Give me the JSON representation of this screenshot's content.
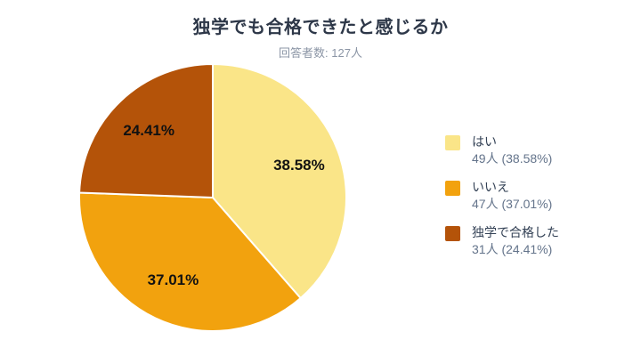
{
  "chart_data": {
    "type": "pie",
    "title": "独学でも合格できたと感じるか",
    "subtitle": "回答者数: 127人",
    "total_respondents": 127,
    "start_angle_deg": 0,
    "direction": "clockwise",
    "legend_position": "right",
    "slices": [
      {
        "label": "はい",
        "count": 49,
        "percent": 38.58,
        "percent_label": "38.58%",
        "legend_value": "49人 (38.58%)",
        "color": "#FAE588"
      },
      {
        "label": "いいえ",
        "count": 47,
        "percent": 37.01,
        "percent_label": "37.01%",
        "legend_value": "47人 (37.01%)",
        "color": "#F2A20E"
      },
      {
        "label": "独学で合格した",
        "count": 31,
        "percent": 24.41,
        "percent_label": "24.41%",
        "legend_value": "31人 (24.41%)",
        "color": "#B45309"
      }
    ]
  },
  "colors": {
    "background": "#FFFFFF",
    "title": "#2D3748",
    "subtitle": "#8B95A5",
    "legend_label": "#334155",
    "legend_value": "#64748B",
    "slice_label": "#111111",
    "slice_border": "#FFFFFF"
  }
}
